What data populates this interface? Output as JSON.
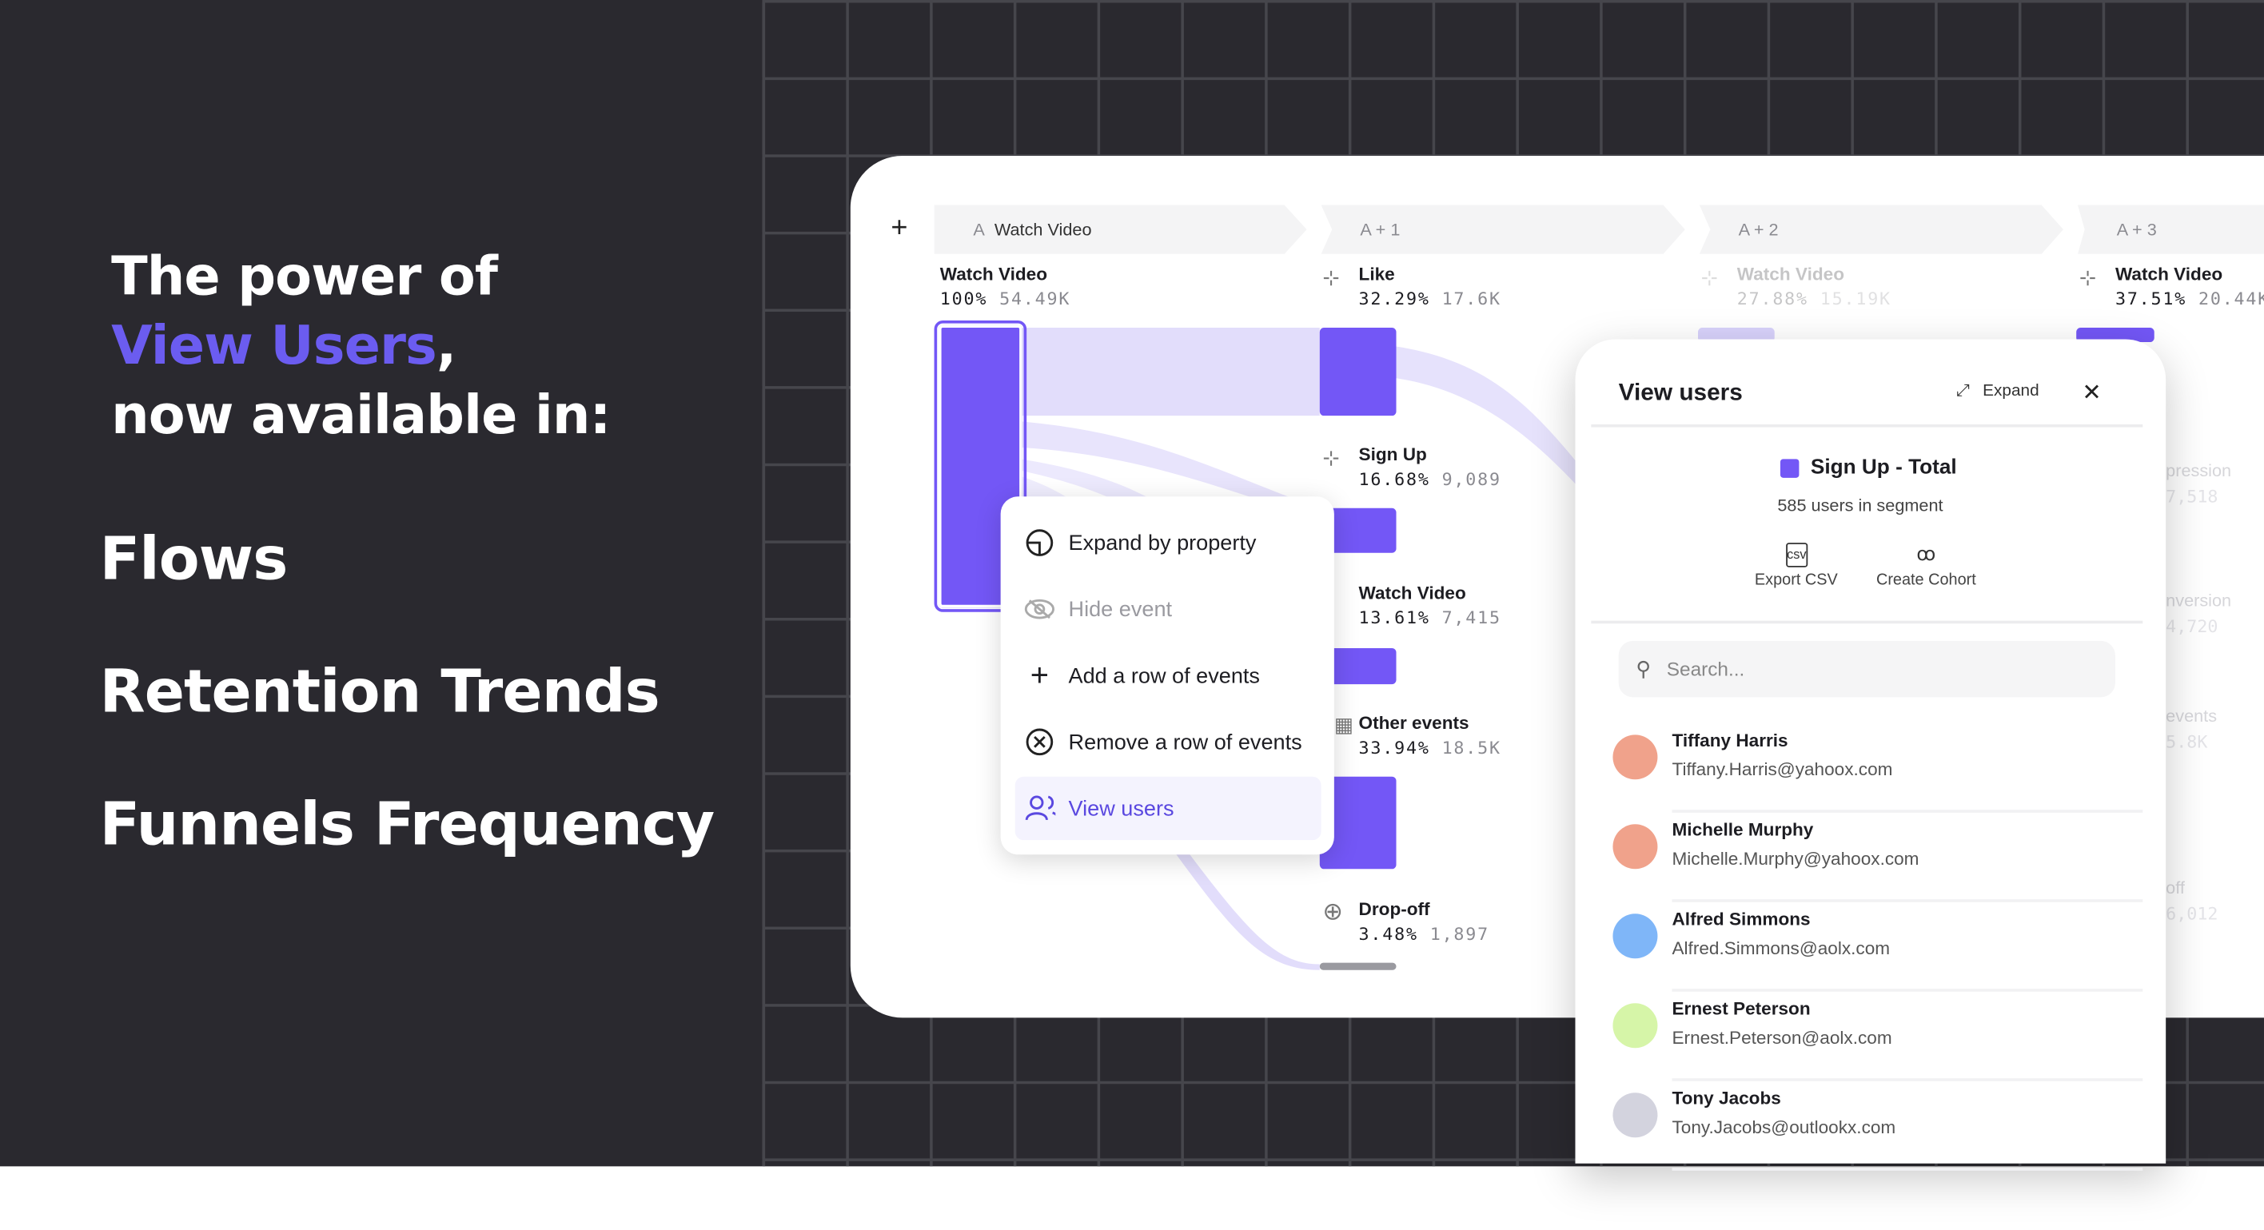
{
  "promo": {
    "line1": "The power of",
    "highlight": "View Users",
    "comma": ",",
    "line3": "now available in:",
    "features": [
      "Flows",
      "Retention Trends",
      "Funnels Frequency"
    ]
  },
  "colors": {
    "accent": "#7357f6",
    "dark_bg": "#2a292f",
    "highlight_text": "#6b5cf0"
  },
  "flows": {
    "add_icon": "+",
    "steps": [
      {
        "letter": "A",
        "label": "Watch Video"
      },
      {
        "label": "A + 1"
      },
      {
        "label": "A + 2"
      },
      {
        "label": "A + 3"
      }
    ],
    "columns": [
      {
        "event": "Watch Video",
        "pct": "100%",
        "count": "54.49K"
      },
      {
        "event": "Like",
        "pct": "32.29%",
        "count": "17.6K",
        "icon": "click-icon"
      },
      {
        "event": "Watch Video",
        "pct": "27.88%",
        "count": "15.19K",
        "icon": "click-icon",
        "faded": true
      },
      {
        "event": "Watch Video",
        "pct": "37.51%",
        "count": "20.44K",
        "icon": "click-icon"
      }
    ],
    "col2_nodes": [
      {
        "event": "Sign Up",
        "pct": "16.68%",
        "count": "9,089",
        "icon": "click-icon"
      },
      {
        "event": "Watch Video",
        "pct": "13.61%",
        "count": "7,415",
        "icon": "click-icon"
      },
      {
        "event": "Other events",
        "pct": "33.94%",
        "count": "18.5K",
        "icon": "grid-icon"
      },
      {
        "event": "Drop-off",
        "pct": "3.48%",
        "count": "1,897",
        "icon": "arrow-down-circle-icon"
      }
    ],
    "col4_partial": [
      {
        "event": "pression",
        "count": "7,518"
      },
      {
        "event": "nversion",
        "count": "4,720"
      },
      {
        "event": "events",
        "count": "5.8K"
      },
      {
        "event": "off",
        "count": "6,012"
      }
    ]
  },
  "context_menu": {
    "items": [
      {
        "label": "Expand by property",
        "icon": "expand-property-icon"
      },
      {
        "label": "Hide event",
        "icon": "eye-off-icon",
        "disabled": true
      },
      {
        "label": "Add a row of events",
        "icon": "plus-icon"
      },
      {
        "label": "Remove a row of events",
        "icon": "x-circle-icon"
      },
      {
        "label": "View users",
        "icon": "users-icon",
        "active": true
      }
    ]
  },
  "view_users": {
    "title": "View users",
    "expand_label": "Expand",
    "segment_title": "Sign Up - Total",
    "segment_count": "585 users in segment",
    "export_label": "Export CSV",
    "cohort_label": "Create Cohort",
    "search_placeholder": "Search...",
    "users": [
      {
        "name": "Tiffany Harris",
        "email": "Tiffany.Harris@yahoox.com",
        "color": "#f0a28b"
      },
      {
        "name": "Michelle Murphy",
        "email": "Michelle.Murphy@yahoox.com",
        "color": "#f0a28b"
      },
      {
        "name": "Alfred Simmons",
        "email": "Alfred.Simmons@aolx.com",
        "color": "#7fb6f8"
      },
      {
        "name": "Ernest Peterson",
        "email": "Ernest.Peterson@aolx.com",
        "color": "#d6f5a8"
      },
      {
        "name": "Tony Jacobs",
        "email": "Tony.Jacobs@outlookx.com",
        "color": "#d3d3de"
      }
    ]
  }
}
